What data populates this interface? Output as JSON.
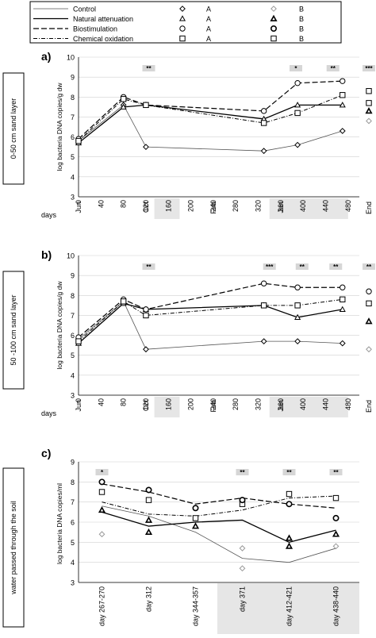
{
  "legend": {
    "entries": [
      {
        "label": "Control",
        "style": "solid-thin",
        "marker_a": "diamond",
        "marker_b": "diamond-open"
      },
      {
        "label": "Natural attenuation",
        "style": "solid",
        "marker_a": "triangle",
        "marker_b": "triangle-bold"
      },
      {
        "label": "Biostimulation",
        "style": "dashed",
        "marker_a": "circle",
        "marker_b": "circle-bold"
      },
      {
        "label": "Chemical oxidation",
        "style": "dashdot",
        "marker_a": "square",
        "marker_b": "square"
      }
    ],
    "col_a": "A",
    "col_b": "B"
  },
  "chart_data": [
    {
      "type": "line",
      "panel_label": "a)",
      "side_label": "0-50 cm sand layer",
      "ylabel": "log bacteria DNA copies/g dw",
      "xlabel": "days",
      "ylim": [
        3,
        10
      ],
      "yticks": [
        3,
        4,
        5,
        6,
        7,
        8,
        9,
        10
      ],
      "xlim": [
        0,
        500
      ],
      "xticks": [
        0,
        40,
        80,
        120,
        160,
        200,
        240,
        280,
        320,
        360,
        400,
        440,
        480
      ],
      "xtick_labels": [
        "0",
        "40",
        "80",
        "120",
        "160",
        "200",
        "240",
        "280",
        "320",
        "360",
        "400",
        "440",
        "480"
      ],
      "month_labels": [
        {
          "x": 0,
          "text": "Jun"
        },
        {
          "x": 120,
          "text": "Oct"
        },
        {
          "x": 240,
          "text": "Feb"
        },
        {
          "x": 360,
          "text": "Jun"
        },
        {
          "x": 490,
          "text": "End"
        }
      ],
      "shaded_ranges": [
        [
          135,
          180
        ],
        [
          340,
          480
        ]
      ],
      "significance": [
        {
          "x": 125,
          "text": "**"
        },
        {
          "x": 387,
          "text": "*"
        },
        {
          "x": 453,
          "text": "**"
        },
        {
          "x": 490,
          "text": "***"
        }
      ],
      "series": [
        {
          "name": "Control",
          "style": "solid-thin",
          "marker": "diamond",
          "x": [
            0,
            80,
            120,
            330,
            390,
            470
          ],
          "y": [
            5.8,
            7.6,
            5.5,
            5.3,
            5.6,
            6.3
          ]
        },
        {
          "name": "Natural attenuation",
          "style": "solid",
          "marker": "triangle",
          "x": [
            0,
            80,
            120,
            330,
            390,
            470
          ],
          "y": [
            5.7,
            7.5,
            7.6,
            6.9,
            7.6,
            7.6
          ]
        },
        {
          "name": "Biostimulation",
          "style": "dashed",
          "marker": "circle",
          "x": [
            0,
            80,
            120,
            330,
            390,
            470
          ],
          "y": [
            5.9,
            8.0,
            7.6,
            7.3,
            8.7,
            8.8
          ]
        },
        {
          "name": "Chemical oxidation",
          "style": "dashdot",
          "marker": "square",
          "x": [
            0,
            80,
            120,
            330,
            390,
            470
          ],
          "y": [
            5.8,
            7.9,
            7.6,
            6.7,
            7.2,
            8.1
          ]
        }
      ],
      "end_points": [
        {
          "marker": "diamond-open",
          "y": 6.8
        },
        {
          "marker": "triangle-bold",
          "y": 7.3
        },
        {
          "marker": "square",
          "y": 7.7
        },
        {
          "marker": "square",
          "y": 8.3
        }
      ]
    },
    {
      "type": "line",
      "panel_label": "b)",
      "side_label": "50 -100 cm sand layer",
      "ylabel": "log bacteria DNA copies/g dw",
      "xlabel": "days",
      "ylim": [
        3,
        10
      ],
      "yticks": [
        3,
        4,
        5,
        6,
        7,
        8,
        9,
        10
      ],
      "xlim": [
        0,
        500
      ],
      "xticks": [
        0,
        40,
        80,
        120,
        160,
        200,
        240,
        280,
        320,
        360,
        400,
        440,
        480
      ],
      "xtick_labels": [
        "0",
        "40",
        "80",
        "120",
        "160",
        "200",
        "240",
        "280",
        "320",
        "360",
        "400",
        "440",
        "480"
      ],
      "month_labels": [
        {
          "x": 0,
          "text": "Jun"
        },
        {
          "x": 120,
          "text": "Oct"
        },
        {
          "x": 240,
          "text": "Feb"
        },
        {
          "x": 360,
          "text": "Jun"
        },
        {
          "x": 490,
          "text": "End"
        }
      ],
      "shaded_ranges": [
        [
          135,
          180
        ],
        [
          340,
          480
        ]
      ],
      "significance": [
        {
          "x": 125,
          "text": "**"
        },
        {
          "x": 340,
          "text": "***"
        },
        {
          "x": 398,
          "text": "**"
        },
        {
          "x": 458,
          "text": "**"
        },
        {
          "x": 490,
          "text": "**"
        }
      ],
      "series": [
        {
          "name": "Control",
          "style": "solid-thin",
          "marker": "diamond",
          "x": [
            0,
            80,
            120,
            330,
            390,
            470
          ],
          "y": [
            5.8,
            7.7,
            5.3,
            5.7,
            5.7,
            5.6
          ]
        },
        {
          "name": "Natural attenuation",
          "style": "solid",
          "marker": "triangle",
          "x": [
            0,
            80,
            120,
            330,
            390,
            470
          ],
          "y": [
            5.6,
            7.6,
            7.3,
            7.5,
            6.9,
            7.3
          ]
        },
        {
          "name": "Biostimulation",
          "style": "dashed",
          "marker": "circle",
          "x": [
            0,
            80,
            120,
            330,
            390,
            470
          ],
          "y": [
            5.9,
            7.8,
            7.3,
            8.6,
            8.4,
            8.4
          ]
        },
        {
          "name": "Chemical oxidation",
          "style": "dashdot",
          "marker": "square",
          "x": [
            0,
            80,
            120,
            330,
            390,
            470
          ],
          "y": [
            5.7,
            7.7,
            7.0,
            7.5,
            7.5,
            7.8
          ]
        }
      ],
      "end_points": [
        {
          "marker": "diamond-open",
          "y": 5.3
        },
        {
          "marker": "triangle-bold",
          "y": 6.7
        },
        {
          "marker": "square",
          "y": 7.6
        },
        {
          "marker": "circle",
          "y": 8.2
        }
      ]
    },
    {
      "type": "line",
      "panel_label": "c)",
      "side_label": "water passed through the soil",
      "ylabel": "log bacteria DNA copies/ml",
      "xlabel": "",
      "ylim": [
        3,
        9
      ],
      "yticks": [
        3,
        4,
        5,
        6,
        7,
        8,
        9
      ],
      "categories": [
        "day 267-270",
        "day 312",
        "day 344-357",
        "day 371",
        "day 412-421",
        "day 438-440"
      ],
      "shaded_categories": [
        3,
        4,
        5
      ],
      "significance": [
        {
          "index": 0,
          "text": "*"
        },
        {
          "index": 3,
          "text": "**"
        },
        {
          "index": 4,
          "text": "**"
        },
        {
          "index": 5,
          "text": "**"
        }
      ],
      "series": [
        {
          "name": "Control",
          "style": "solid-thin",
          "marker": "diamond",
          "values": [
            6.8,
            6.3,
            5.5,
            4.2,
            4.0,
            4.7
          ]
        },
        {
          "name": "Natural attenuation",
          "style": "solid",
          "marker": "triangle",
          "values": [
            6.5,
            5.8,
            6.0,
            6.1,
            5.0,
            5.6
          ]
        },
        {
          "name": "Biostimulation",
          "style": "dashed",
          "marker": "circle",
          "values": [
            7.9,
            7.5,
            6.9,
            7.2,
            6.9,
            6.7
          ]
        },
        {
          "name": "Chemical oxidation",
          "style": "dashdot",
          "marker": "square",
          "values": [
            7.0,
            6.4,
            6.3,
            6.6,
            7.2,
            7.3
          ]
        }
      ],
      "extra_points": [
        {
          "index": 0,
          "marker": "diamond-open",
          "y": 5.4
        },
        {
          "index": 0,
          "marker": "triangle-bold",
          "y": 6.6
        },
        {
          "index": 0,
          "marker": "circle-bold",
          "y": 8.0
        },
        {
          "index": 0,
          "marker": "square",
          "y": 7.5
        },
        {
          "index": 1,
          "marker": "triangle-bold",
          "y": 5.5
        },
        {
          "index": 1,
          "marker": "circle-bold",
          "y": 7.6
        },
        {
          "index": 1,
          "marker": "square",
          "y": 7.1
        },
        {
          "index": 1,
          "marker": "triangle-bold",
          "y": 6.1
        },
        {
          "index": 2,
          "marker": "circle-bold",
          "y": 6.7
        },
        {
          "index": 2,
          "marker": "square",
          "y": 6.2
        },
        {
          "index": 2,
          "marker": "triangle-bold",
          "y": 5.8
        },
        {
          "index": 3,
          "marker": "diamond-open",
          "y": 3.7
        },
        {
          "index": 3,
          "marker": "diamond-open",
          "y": 4.7
        },
        {
          "index": 3,
          "marker": "square",
          "y": 6.9
        },
        {
          "index": 3,
          "marker": "circle-bold",
          "y": 7.1
        },
        {
          "index": 4,
          "marker": "triangle-bold",
          "y": 4.8
        },
        {
          "index": 4,
          "marker": "square",
          "y": 7.4
        },
        {
          "index": 4,
          "marker": "circle-bold",
          "y": 6.9
        },
        {
          "index": 4,
          "marker": "triangle-bold",
          "y": 5.2
        },
        {
          "index": 5,
          "marker": "diamond-open",
          "y": 4.8
        },
        {
          "index": 5,
          "marker": "triangle-bold",
          "y": 5.4
        },
        {
          "index": 5,
          "marker": "circle-bold",
          "y": 6.2
        },
        {
          "index": 5,
          "marker": "square",
          "y": 7.2
        }
      ]
    }
  ]
}
